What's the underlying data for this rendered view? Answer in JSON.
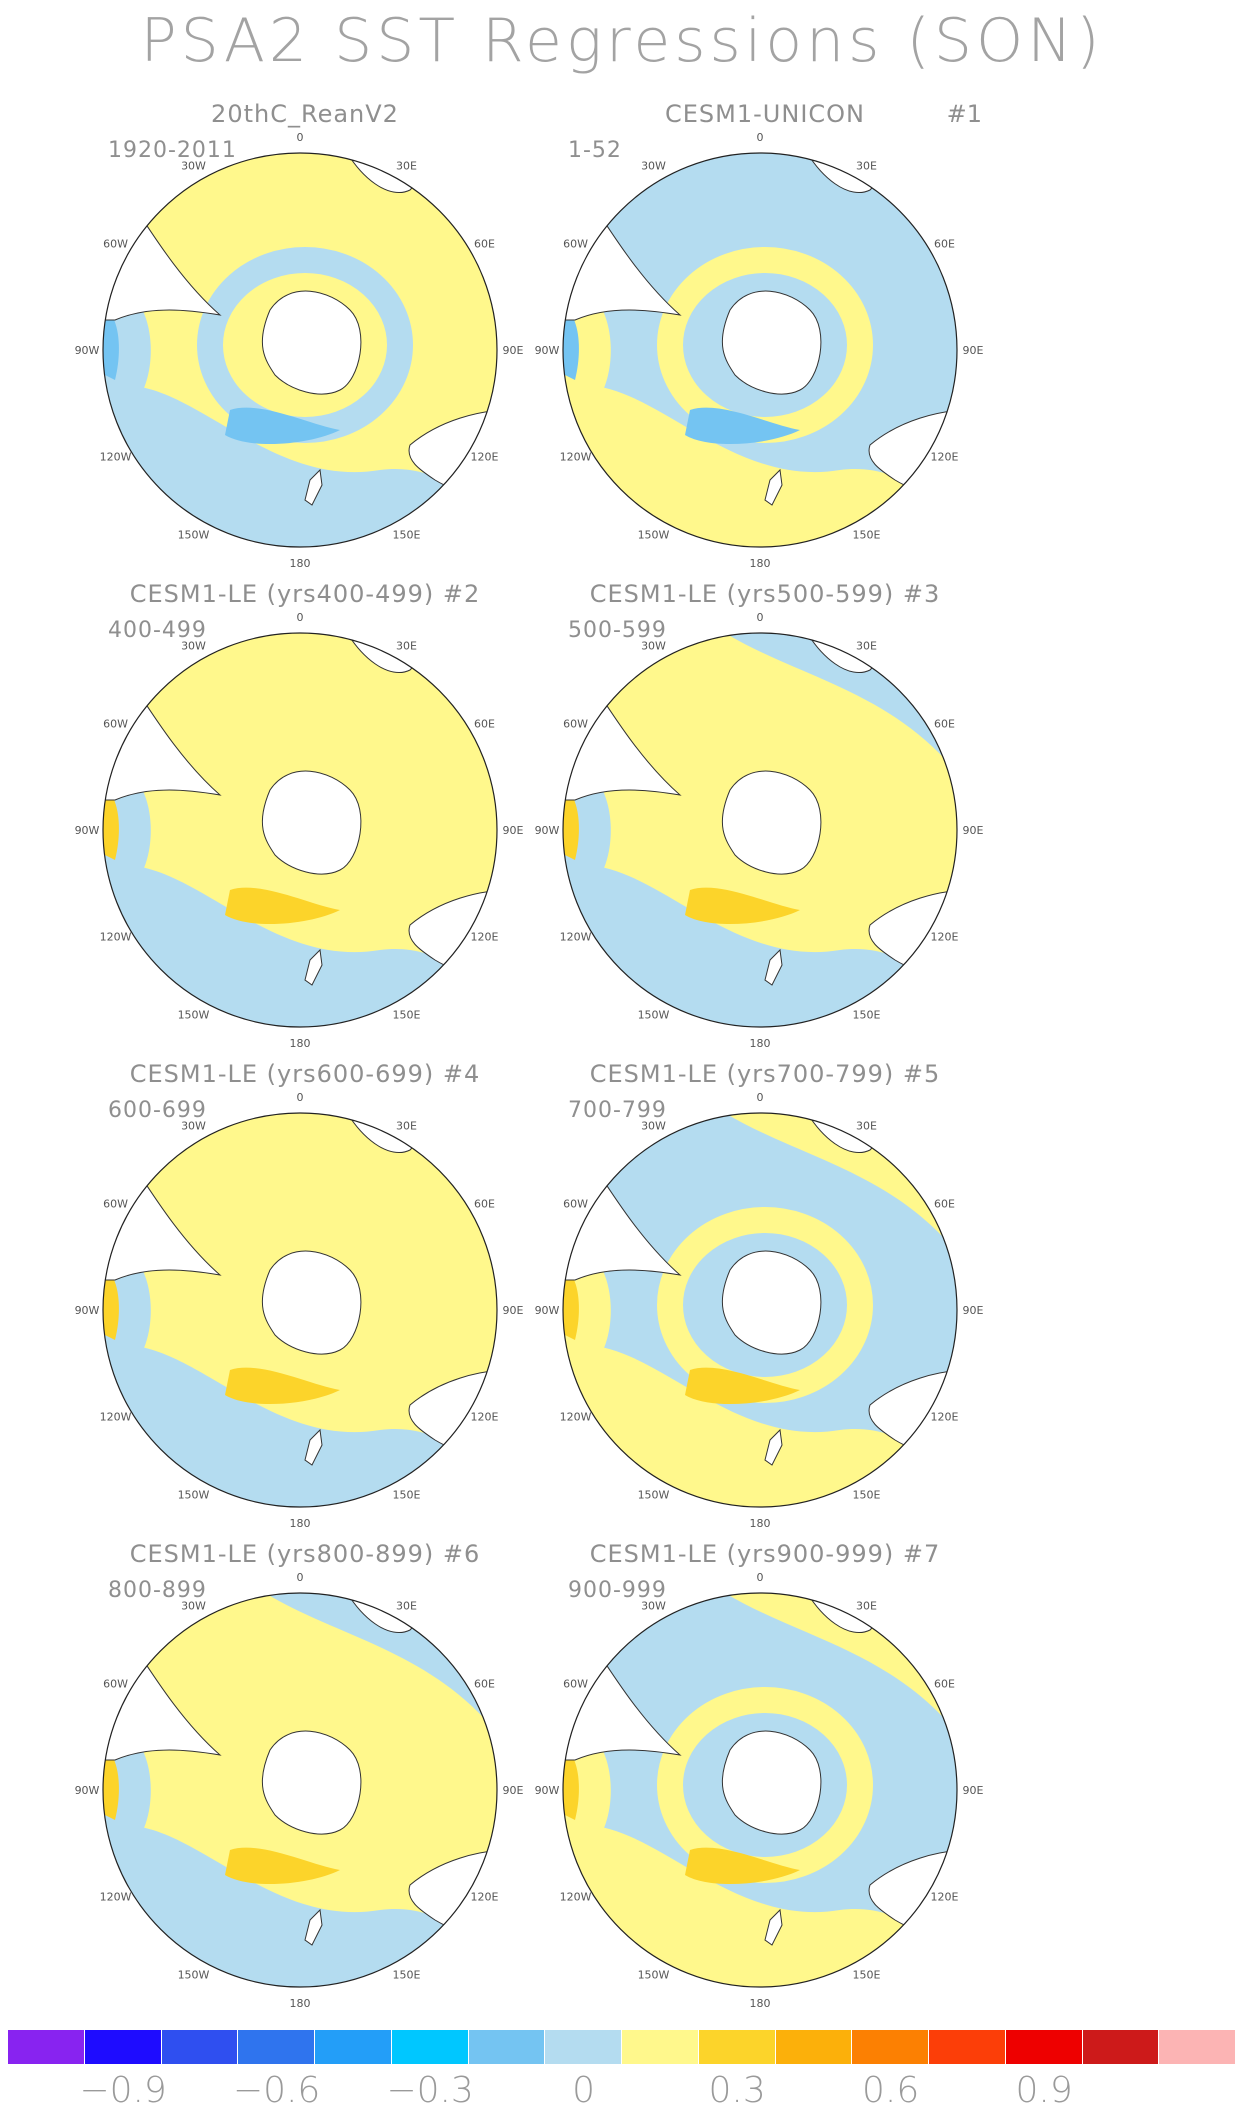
{
  "title": "PSA2 SST Regressions (SON)",
  "panels": [
    {
      "title": "20thC_ReanV2",
      "num": "",
      "range": "1920-2011",
      "scheme": {
        "base": "pos",
        "blob1": "neg",
        "blob2": "pos",
        "ring": "neg",
        "strong": "neg"
      }
    },
    {
      "title": "CESM1-UNICON",
      "num": "#1",
      "range": "1-52",
      "scheme": {
        "base": "neg",
        "blob1": "pos",
        "blob2": "neg",
        "ring": "pos",
        "strong": "neg"
      }
    },
    {
      "title": "CESM1-LE (yrs400-499) #2",
      "num": "",
      "range": "400-499",
      "scheme": {
        "base": "pos",
        "blob1": "neg",
        "blob2": "pos",
        "ring": "pos",
        "strong": "pos"
      }
    },
    {
      "title": "CESM1-LE (yrs500-599) #3",
      "num": "",
      "range": "500-599",
      "scheme": {
        "base": "pos",
        "blob1": "neg",
        "blob2": "neg",
        "ring": "pos",
        "strong": "pos"
      }
    },
    {
      "title": "CESM1-LE (yrs600-699) #4",
      "num": "",
      "range": "600-699",
      "scheme": {
        "base": "pos",
        "blob1": "neg",
        "blob2": "pos",
        "ring": "pos",
        "strong": "pos"
      }
    },
    {
      "title": "CESM1-LE (yrs700-799) #5",
      "num": "",
      "range": "700-799",
      "scheme": {
        "base": "neg",
        "blob1": "pos",
        "blob2": "pos",
        "ring": "pos",
        "strong": "pos"
      }
    },
    {
      "title": "CESM1-LE (yrs800-899) #6",
      "num": "",
      "range": "800-899",
      "scheme": {
        "base": "pos",
        "blob1": "neg",
        "blob2": "neg",
        "ring": "pos",
        "strong": "pos"
      }
    },
    {
      "title": "CESM1-LE (yrs900-999) #7",
      "num": "",
      "range": "900-999",
      "scheme": {
        "base": "neg",
        "blob1": "pos",
        "blob2": "pos",
        "ring": "pos",
        "strong": "pos"
      }
    }
  ],
  "lon_labels": [
    "0",
    "30E",
    "60E",
    "90E",
    "120E",
    "150E",
    "180",
    "150W",
    "120W",
    "90W",
    "60W",
    "30W"
  ],
  "colors": {
    "neg": "#b4dcf0",
    "neg_strong": "#74c4f2",
    "pos": "#fff88c",
    "pos_strong": "#fcd42a",
    "land": "#ffffff"
  },
  "colorbar": {
    "colors": [
      "#8823f0",
      "#1e0cff",
      "#2f4ff0",
      "#2f74ee",
      "#239ef8",
      "#00c7ff",
      "#74c4f2",
      "#b4dcf0",
      "#fff88c",
      "#fcd42a",
      "#fcb00a",
      "#fc8002",
      "#fc3e08",
      "#ee0000",
      "#cd1a1a",
      "#fcb4b4"
    ],
    "labels": [
      "−0.9",
      "−0.6",
      "−0.3",
      "0",
      "0.3",
      "0.6",
      "0.9"
    ],
    "label_boundaries": [
      1,
      3,
      5,
      7,
      9,
      11,
      13
    ]
  }
}
